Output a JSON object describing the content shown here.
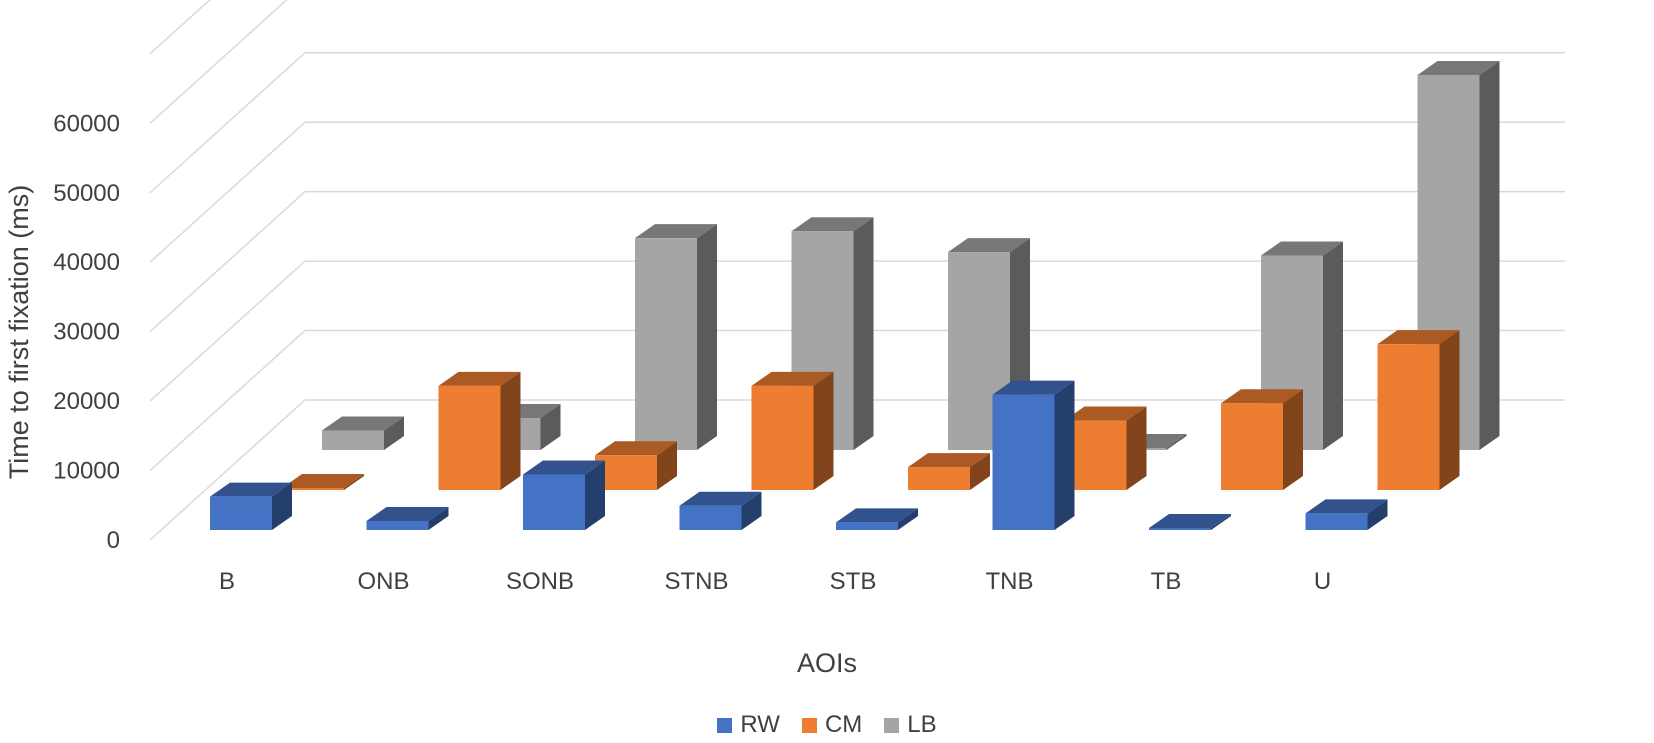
{
  "chart_data": {
    "type": "bar",
    "subtype": "3d-column",
    "title": "",
    "xlabel": "AOIs",
    "ylabel": "Time to first fixation (ms)",
    "ylim": [
      0,
      60000
    ],
    "yticks": [
      "0",
      "10000",
      "20000",
      "30000",
      "40000",
      "50000",
      "60000"
    ],
    "categories": [
      "B",
      "ONB",
      "SONB",
      "STNB",
      "STB",
      "TNB",
      "TB",
      "U"
    ],
    "series": [
      {
        "name": "RW",
        "color": "#4472C4",
        "values": [
          4800,
          1300,
          8000,
          3500,
          1100,
          19500,
          0,
          2400
        ]
      },
      {
        "name": "CM",
        "color": "#ED7D31",
        "values": [
          0,
          15000,
          5000,
          15000,
          3300,
          10000,
          12500,
          21000
        ]
      },
      {
        "name": "LB",
        "color": "#A5A5A5",
        "values": [
          2800,
          4600,
          30500,
          31500,
          28500,
          200,
          28000,
          54000
        ]
      }
    ],
    "grid": true,
    "legend_position": "bottom"
  }
}
